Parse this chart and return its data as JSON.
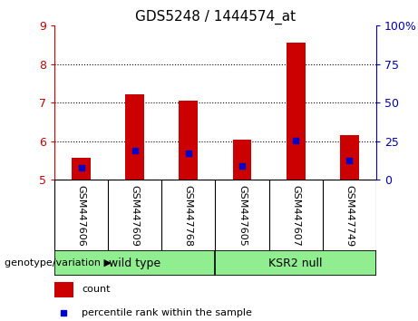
{
  "title": "GDS5248 / 1444574_at",
  "categories": [
    "GSM447606",
    "GSM447609",
    "GSM447768",
    "GSM447605",
    "GSM447607",
    "GSM447749"
  ],
  "bar_bottoms": [
    5,
    5,
    5,
    5,
    5,
    5
  ],
  "bar_tops": [
    5.58,
    7.22,
    7.05,
    6.04,
    8.56,
    6.15
  ],
  "blue_positions": [
    5.32,
    5.75,
    5.69,
    5.37,
    6.01,
    5.49
  ],
  "ylim": [
    5,
    9
  ],
  "yticks_left": [
    5,
    6,
    7,
    8,
    9
  ],
  "yticks_right_labels": [
    "0",
    "25",
    "50",
    "75",
    "100%"
  ],
  "yticks_right_pos": [
    5,
    6,
    7,
    8,
    9
  ],
  "bar_color": "#CC0000",
  "blue_color": "#0000CC",
  "bar_width": 0.35,
  "label_color_left": "#CC0000",
  "label_color_right": "#0000BB",
  "bg_label": "#C8C8C8",
  "bg_group": "#90EE90",
  "legend_count_color": "#CC0000",
  "legend_pct_color": "#0000CC",
  "group_divider": 2.5,
  "wt_label": "wild type",
  "ksr_label": "KSR2 null",
  "genotype_label": "genotype/variation",
  "legend_count_text": "count",
  "legend_pct_text": "percentile rank within the sample"
}
